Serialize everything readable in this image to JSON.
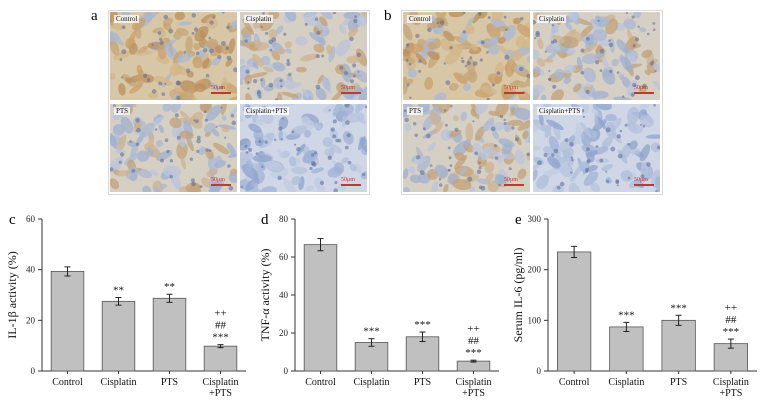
{
  "panels": {
    "a": {
      "label": "a",
      "tiles": [
        {
          "label": "Control",
          "scale": "50μm",
          "tone": "brown-heavy"
        },
        {
          "label": "Cisplatin",
          "scale": "50μm",
          "tone": "brown-mixed"
        },
        {
          "label": "PTS",
          "scale": "50μm",
          "tone": "brown-mixed"
        },
        {
          "label": "Cisplatin+PTS",
          "scale": "50μm",
          "tone": "blue"
        }
      ]
    },
    "b": {
      "label": "b",
      "tiles": [
        {
          "label": "Control",
          "scale": "50μm",
          "tone": "brown-heavy"
        },
        {
          "label": "Cisplatin",
          "scale": "50μm",
          "tone": "brown-mixed"
        },
        {
          "label": "PTS",
          "scale": "50μm",
          "tone": "brown-mixed"
        },
        {
          "label": "Cisplatin+PTS",
          "scale": "50μm",
          "tone": "blue"
        }
      ]
    }
  },
  "chart_data": [
    {
      "id": "c",
      "panel_label": "c",
      "type": "bar",
      "categories": [
        "Control",
        "Cisplatin",
        "PTS",
        "Cisplatin\n+PTS"
      ],
      "values": [
        39.3,
        27.5,
        28.7,
        9.8
      ],
      "errors": [
        1.8,
        1.5,
        1.6,
        0.6
      ],
      "annotations": [
        "",
        "**",
        "**",
        "++\n##\n***"
      ],
      "ylabel": "IL-1β activity (%)",
      "ylim": [
        0,
        60
      ],
      "yticks": [
        0,
        20,
        40,
        60
      ],
      "grid": false,
      "bar_color": "#c0c0c0"
    },
    {
      "id": "d",
      "panel_label": "d",
      "type": "bar",
      "categories": [
        "Control",
        "Cisplatin",
        "PTS",
        "Cisplatin\n+PTS"
      ],
      "values": [
        66.5,
        15.0,
        18.0,
        5.2
      ],
      "errors": [
        3.2,
        2.0,
        2.5,
        0.5
      ],
      "annotations": [
        "",
        "***",
        "***",
        "++\n##\n***"
      ],
      "ylabel": "TNF-α activity (%)",
      "ylim": [
        0,
        80
      ],
      "yticks": [
        0,
        20,
        40,
        60,
        80
      ],
      "grid": false,
      "bar_color": "#c0c0c0"
    },
    {
      "id": "e",
      "panel_label": "e",
      "type": "bar",
      "categories": [
        "Control",
        "Cisplatin",
        "PTS",
        "Cisplatin\n+PTS"
      ],
      "values": [
        235,
        87,
        100,
        54
      ],
      "errors": [
        11,
        9,
        10,
        9
      ],
      "annotations": [
        "",
        "***",
        "***",
        "++\n##\n***"
      ],
      "ylabel": "Serum IL-6 (pg/ml)",
      "ylim": [
        0,
        300
      ],
      "yticks": [
        0,
        100,
        200,
        300
      ],
      "grid": false,
      "bar_color": "#c0c0c0"
    }
  ]
}
